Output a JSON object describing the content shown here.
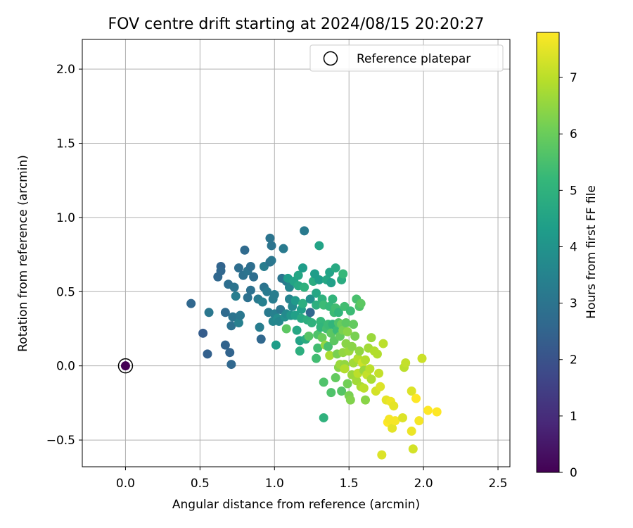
{
  "chart_data": {
    "type": "scatter",
    "title": "FOV centre drift starting at 2024/08/15 20:20:27",
    "xlabel": "Angular distance from reference (arcmin)",
    "ylabel": "Rotation from reference (arcmin)",
    "xlim": [
      -0.29,
      2.58
    ],
    "ylim": [
      -0.68,
      2.2
    ],
    "xticks": [
      0.0,
      0.5,
      1.0,
      1.5,
      2.0,
      2.5
    ],
    "xtick_labels": [
      "0.0",
      "0.5",
      "1.0",
      "1.5",
      "2.0",
      "2.5"
    ],
    "yticks": [
      -0.5,
      0.0,
      0.5,
      1.0,
      1.5,
      2.0
    ],
    "ytick_labels": [
      "−0.5",
      "0.0",
      "0.5",
      "1.0",
      "1.5",
      "2.0"
    ],
    "grid": true,
    "legend": {
      "placement": "top-right",
      "entries": [
        {
          "label": "Reference platepar",
          "marker": "open-circle"
        }
      ]
    },
    "colorbar": {
      "label": "Hours from first FF file",
      "range": [
        0,
        7.8
      ],
      "ticks": [
        0,
        1,
        2,
        3,
        4,
        5,
        6,
        7
      ],
      "tick_labels": [
        "0",
        "1",
        "2",
        "3",
        "4",
        "5",
        "6",
        "7"
      ],
      "colormap": "viridis",
      "stops": [
        "#440154",
        "#482878",
        "#3e4989",
        "#31688e",
        "#26828e",
        "#1f9e89",
        "#35b779",
        "#6ece58",
        "#b5de2b",
        "#fde725"
      ]
    },
    "reference_point": {
      "x": 0.0,
      "y": 0.0,
      "hours": 0
    },
    "points": [
      {
        "x": 0.0,
        "y": 0.0,
        "h": 0.0
      },
      {
        "x": 0.44,
        "y": 0.42,
        "h": 2.6
      },
      {
        "x": 0.52,
        "y": 0.22,
        "h": 2.3
      },
      {
        "x": 0.55,
        "y": 0.08,
        "h": 2.4
      },
      {
        "x": 0.56,
        "y": 0.36,
        "h": 3.1
      },
      {
        "x": 0.62,
        "y": 0.6,
        "h": 2.6
      },
      {
        "x": 0.64,
        "y": 0.67,
        "h": 2.5
      },
      {
        "x": 0.64,
        "y": 0.64,
        "h": 2.6
      },
      {
        "x": 0.67,
        "y": 0.14,
        "h": 2.5
      },
      {
        "x": 0.67,
        "y": 0.36,
        "h": 2.7
      },
      {
        "x": 0.7,
        "y": 0.09,
        "h": 2.5
      },
      {
        "x": 0.69,
        "y": 0.55,
        "h": 2.8
      },
      {
        "x": 0.71,
        "y": 0.27,
        "h": 2.9
      },
      {
        "x": 0.71,
        "y": 0.01,
        "h": 2.6
      },
      {
        "x": 0.72,
        "y": 0.33,
        "h": 3.0
      },
      {
        "x": 0.73,
        "y": 0.53,
        "h": 3.0
      },
      {
        "x": 0.74,
        "y": 0.47,
        "h": 3.3
      },
      {
        "x": 0.76,
        "y": 0.29,
        "h": 3.4
      },
      {
        "x": 0.76,
        "y": 0.66,
        "h": 2.8
      },
      {
        "x": 0.77,
        "y": 0.34,
        "h": 3.1
      },
      {
        "x": 0.79,
        "y": 0.61,
        "h": 2.9
      },
      {
        "x": 0.8,
        "y": 0.78,
        "h": 2.7
      },
      {
        "x": 0.82,
        "y": 0.64,
        "h": 3.0
      },
      {
        "x": 0.82,
        "y": 0.46,
        "h": 2.9
      },
      {
        "x": 0.84,
        "y": 0.67,
        "h": 2.8
      },
      {
        "x": 0.84,
        "y": 0.51,
        "h": 2.9
      },
      {
        "x": 0.86,
        "y": 0.6,
        "h": 2.8
      },
      {
        "x": 0.89,
        "y": 0.45,
        "h": 3.2
      },
      {
        "x": 0.9,
        "y": 0.26,
        "h": 3.3
      },
      {
        "x": 0.91,
        "y": 0.18,
        "h": 2.6
      },
      {
        "x": 0.92,
        "y": 0.43,
        "h": 3.4
      },
      {
        "x": 0.93,
        "y": 0.53,
        "h": 3.0
      },
      {
        "x": 0.93,
        "y": 0.67,
        "h": 3.3
      },
      {
        "x": 0.95,
        "y": 0.5,
        "h": 3.2
      },
      {
        "x": 0.96,
        "y": 0.36,
        "h": 3.2
      },
      {
        "x": 0.97,
        "y": 0.86,
        "h": 3.0
      },
      {
        "x": 0.97,
        "y": 0.7,
        "h": 3.0
      },
      {
        "x": 0.98,
        "y": 0.81,
        "h": 3.0
      },
      {
        "x": 0.98,
        "y": 0.71,
        "h": 3.1
      },
      {
        "x": 0.99,
        "y": 0.45,
        "h": 3.3
      },
      {
        "x": 0.99,
        "y": 0.3,
        "h": 3.6
      },
      {
        "x": 1.0,
        "y": 0.35,
        "h": 3.4
      },
      {
        "x": 1.0,
        "y": 0.48,
        "h": 3.3
      },
      {
        "x": 1.01,
        "y": 0.14,
        "h": 4.3
      },
      {
        "x": 1.02,
        "y": 0.32,
        "h": 3.8
      },
      {
        "x": 1.03,
        "y": 0.3,
        "h": 3.6
      },
      {
        "x": 1.04,
        "y": 0.38,
        "h": 3.1
      },
      {
        "x": 1.05,
        "y": 0.59,
        "h": 3.0
      },
      {
        "x": 1.06,
        "y": 0.79,
        "h": 3.2
      },
      {
        "x": 1.07,
        "y": 0.33,
        "h": 3.9
      },
      {
        "x": 1.08,
        "y": 0.57,
        "h": 3.2
      },
      {
        "x": 1.08,
        "y": 0.35,
        "h": 3.7
      },
      {
        "x": 1.08,
        "y": 0.25,
        "h": 5.8
      },
      {
        "x": 1.09,
        "y": 0.59,
        "h": 4.3
      },
      {
        "x": 1.1,
        "y": 0.53,
        "h": 3.6
      },
      {
        "x": 1.1,
        "y": 0.45,
        "h": 3.5
      },
      {
        "x": 1.11,
        "y": 0.34,
        "h": 4.1
      },
      {
        "x": 1.12,
        "y": 0.4,
        "h": 3.7
      },
      {
        "x": 1.13,
        "y": 0.57,
        "h": 4.5
      },
      {
        "x": 1.14,
        "y": 0.44,
        "h": 4.2
      },
      {
        "x": 1.14,
        "y": 0.34,
        "h": 4.4
      },
      {
        "x": 1.15,
        "y": 0.24,
        "h": 4.6
      },
      {
        "x": 1.16,
        "y": 0.54,
        "h": 4.7
      },
      {
        "x": 1.16,
        "y": 0.61,
        "h": 4.6
      },
      {
        "x": 1.17,
        "y": 0.1,
        "h": 4.9
      },
      {
        "x": 1.17,
        "y": 0.17,
        "h": 4.5
      },
      {
        "x": 1.18,
        "y": 0.32,
        "h": 4.7
      },
      {
        "x": 1.18,
        "y": 0.38,
        "h": 4.4
      },
      {
        "x": 1.19,
        "y": 0.66,
        "h": 4.3
      },
      {
        "x": 1.19,
        "y": 0.42,
        "h": 4.9
      },
      {
        "x": 1.2,
        "y": 0.91,
        "h": 3.2
      },
      {
        "x": 1.2,
        "y": 0.53,
        "h": 5.0
      },
      {
        "x": 1.21,
        "y": 0.18,
        "h": 4.8
      },
      {
        "x": 1.22,
        "y": 0.31,
        "h": 4.9
      },
      {
        "x": 1.23,
        "y": 0.2,
        "h": 5.7
      },
      {
        "x": 1.24,
        "y": 0.36,
        "h": 2.6
      },
      {
        "x": 1.24,
        "y": 0.45,
        "h": 3.9
      },
      {
        "x": 1.25,
        "y": 0.29,
        "h": 5.0
      },
      {
        "x": 1.26,
        "y": 0.57,
        "h": 4.8
      },
      {
        "x": 1.27,
        "y": 0.62,
        "h": 4.3
      },
      {
        "x": 1.28,
        "y": 0.49,
        "h": 4.6
      },
      {
        "x": 1.28,
        "y": 0.41,
        "h": 4.9
      },
      {
        "x": 1.28,
        "y": 0.05,
        "h": 5.4
      },
      {
        "x": 1.29,
        "y": 0.21,
        "h": 5.6
      },
      {
        "x": 1.29,
        "y": 0.12,
        "h": 5.4
      },
      {
        "x": 1.3,
        "y": 0.58,
        "h": 4.3
      },
      {
        "x": 1.3,
        "y": 0.81,
        "h": 4.5
      },
      {
        "x": 1.31,
        "y": 0.3,
        "h": 5.2
      },
      {
        "x": 1.31,
        "y": 0.26,
        "h": 5.1
      },
      {
        "x": 1.32,
        "y": 0.45,
        "h": 5.0
      },
      {
        "x": 1.32,
        "y": 0.19,
        "h": 6.0
      },
      {
        "x": 1.33,
        "y": 0.41,
        "h": 5.3
      },
      {
        "x": 1.33,
        "y": -0.11,
        "h": 5.6
      },
      {
        "x": 1.33,
        "y": -0.35,
        "h": 5.0
      },
      {
        "x": 1.34,
        "y": 0.14,
        "h": 6.5
      },
      {
        "x": 1.35,
        "y": 0.25,
        "h": 5.4
      },
      {
        "x": 1.35,
        "y": 0.58,
        "h": 4.6
      },
      {
        "x": 1.36,
        "y": 0.28,
        "h": 5.3
      },
      {
        "x": 1.36,
        "y": 0.13,
        "h": 5.5
      },
      {
        "x": 1.37,
        "y": 0.63,
        "h": 4.5
      },
      {
        "x": 1.37,
        "y": 0.4,
        "h": 5.2
      },
      {
        "x": 1.37,
        "y": 0.07,
        "h": 6.8
      },
      {
        "x": 1.38,
        "y": -0.18,
        "h": 5.6
      },
      {
        "x": 1.38,
        "y": 0.22,
        "h": 5.8
      },
      {
        "x": 1.38,
        "y": 0.56,
        "h": 4.4
      },
      {
        "x": 1.39,
        "y": 0.28,
        "h": 5.1
      },
      {
        "x": 1.39,
        "y": 0.45,
        "h": 5.1
      },
      {
        "x": 1.4,
        "y": 0.36,
        "h": 5.3
      },
      {
        "x": 1.4,
        "y": 0.17,
        "h": 5.8
      },
      {
        "x": 1.41,
        "y": 0.66,
        "h": 4.7
      },
      {
        "x": 1.41,
        "y": 0.39,
        "h": 5.4
      },
      {
        "x": 1.41,
        "y": -0.08,
        "h": 5.9
      },
      {
        "x": 1.42,
        "y": 0.24,
        "h": 5.3
      },
      {
        "x": 1.42,
        "y": 0.08,
        "h": 6.2
      },
      {
        "x": 1.43,
        "y": 0.29,
        "h": 5.6
      },
      {
        "x": 1.43,
        "y": -0.01,
        "h": 6.4
      },
      {
        "x": 1.43,
        "y": 0.36,
        "h": 5.1
      },
      {
        "x": 1.44,
        "y": 0.2,
        "h": 5.9
      },
      {
        "x": 1.44,
        "y": 0.01,
        "h": 6.6
      },
      {
        "x": 1.45,
        "y": 0.58,
        "h": 4.8
      },
      {
        "x": 1.45,
        "y": -0.17,
        "h": 5.7
      },
      {
        "x": 1.45,
        "y": 0.28,
        "h": 6.0
      },
      {
        "x": 1.46,
        "y": 0.62,
        "h": 5.2
      },
      {
        "x": 1.46,
        "y": 0.09,
        "h": 6.5
      },
      {
        "x": 1.46,
        "y": 0.24,
        "h": 6.2
      },
      {
        "x": 1.47,
        "y": 0.4,
        "h": 5.4
      },
      {
        "x": 1.47,
        "y": 0.01,
        "h": 6.5
      },
      {
        "x": 1.47,
        "y": -0.02,
        "h": 6.9
      },
      {
        "x": 1.48,
        "y": 0.29,
        "h": 5.8
      },
      {
        "x": 1.48,
        "y": 0.15,
        "h": 6.4
      },
      {
        "x": 1.49,
        "y": 0.23,
        "h": 6.4
      },
      {
        "x": 1.49,
        "y": -0.12,
        "h": 6.1
      },
      {
        "x": 1.5,
        "y": 0.1,
        "h": 6.6
      },
      {
        "x": 1.5,
        "y": -0.2,
        "h": 6.2
      },
      {
        "x": 1.51,
        "y": -0.23,
        "h": 6.3
      },
      {
        "x": 1.51,
        "y": 0.37,
        "h": 5.3
      },
      {
        "x": 1.52,
        "y": 0.13,
        "h": 6.4
      },
      {
        "x": 1.52,
        "y": -0.06,
        "h": 6.6
      },
      {
        "x": 1.53,
        "y": 0.28,
        "h": 5.9
      },
      {
        "x": 1.53,
        "y": 0.02,
        "h": 6.7
      },
      {
        "x": 1.54,
        "y": 0.2,
        "h": 6.2
      },
      {
        "x": 1.55,
        "y": -0.1,
        "h": 6.7
      },
      {
        "x": 1.55,
        "y": 0.45,
        "h": 5.5
      },
      {
        "x": 1.56,
        "y": 0.05,
        "h": 6.9
      },
      {
        "x": 1.56,
        "y": -0.05,
        "h": 7.0
      },
      {
        "x": 1.57,
        "y": 0.4,
        "h": 5.6
      },
      {
        "x": 1.57,
        "y": 0.1,
        "h": 6.5
      },
      {
        "x": 1.58,
        "y": -0.14,
        "h": 6.8
      },
      {
        "x": 1.58,
        "y": 0.42,
        "h": 5.8
      },
      {
        "x": 1.59,
        "y": 0.02,
        "h": 7.2
      },
      {
        "x": 1.6,
        "y": -0.03,
        "h": 6.6
      },
      {
        "x": 1.6,
        "y": -0.15,
        "h": 7.0
      },
      {
        "x": 1.61,
        "y": -0.23,
        "h": 6.4
      },
      {
        "x": 1.61,
        "y": 0.04,
        "h": 6.9
      },
      {
        "x": 1.62,
        "y": -0.06,
        "h": 7.1
      },
      {
        "x": 1.63,
        "y": 0.12,
        "h": 6.7
      },
      {
        "x": 1.64,
        "y": -0.02,
        "h": 7.0
      },
      {
        "x": 1.65,
        "y": 0.19,
        "h": 6.6
      },
      {
        "x": 1.65,
        "y": -0.09,
        "h": 6.8
      },
      {
        "x": 1.67,
        "y": 0.1,
        "h": 6.9
      },
      {
        "x": 1.68,
        "y": -0.17,
        "h": 7.3
      },
      {
        "x": 1.69,
        "y": 0.08,
        "h": 6.9
      },
      {
        "x": 1.7,
        "y": -0.05,
        "h": 7.1
      },
      {
        "x": 1.71,
        "y": -0.14,
        "h": 7.4
      },
      {
        "x": 1.72,
        "y": -0.6,
        "h": 7.4
      },
      {
        "x": 1.73,
        "y": 0.15,
        "h": 7.0
      },
      {
        "x": 1.75,
        "y": -0.23,
        "h": 7.5
      },
      {
        "x": 1.76,
        "y": -0.38,
        "h": 7.8
      },
      {
        "x": 1.77,
        "y": -0.36,
        "h": 7.7
      },
      {
        "x": 1.78,
        "y": -0.24,
        "h": 7.6
      },
      {
        "x": 1.79,
        "y": -0.42,
        "h": 7.5
      },
      {
        "x": 1.8,
        "y": -0.27,
        "h": 7.5
      },
      {
        "x": 1.81,
        "y": -0.37,
        "h": 7.7
      },
      {
        "x": 1.86,
        "y": -0.35,
        "h": 7.4
      },
      {
        "x": 1.87,
        "y": -0.01,
        "h": 7.0
      },
      {
        "x": 1.88,
        "y": 0.02,
        "h": 7.1
      },
      {
        "x": 1.92,
        "y": -0.17,
        "h": 7.4
      },
      {
        "x": 1.92,
        "y": -0.44,
        "h": 7.6
      },
      {
        "x": 1.93,
        "y": -0.56,
        "h": 7.3
      },
      {
        "x": 1.95,
        "y": -0.22,
        "h": 7.8
      },
      {
        "x": 1.97,
        "y": -0.37,
        "h": 7.7
      },
      {
        "x": 1.99,
        "y": 0.05,
        "h": 7.2
      },
      {
        "x": 2.03,
        "y": -0.3,
        "h": 7.8
      },
      {
        "x": 2.09,
        "y": -0.31,
        "h": 7.8
      }
    ]
  }
}
